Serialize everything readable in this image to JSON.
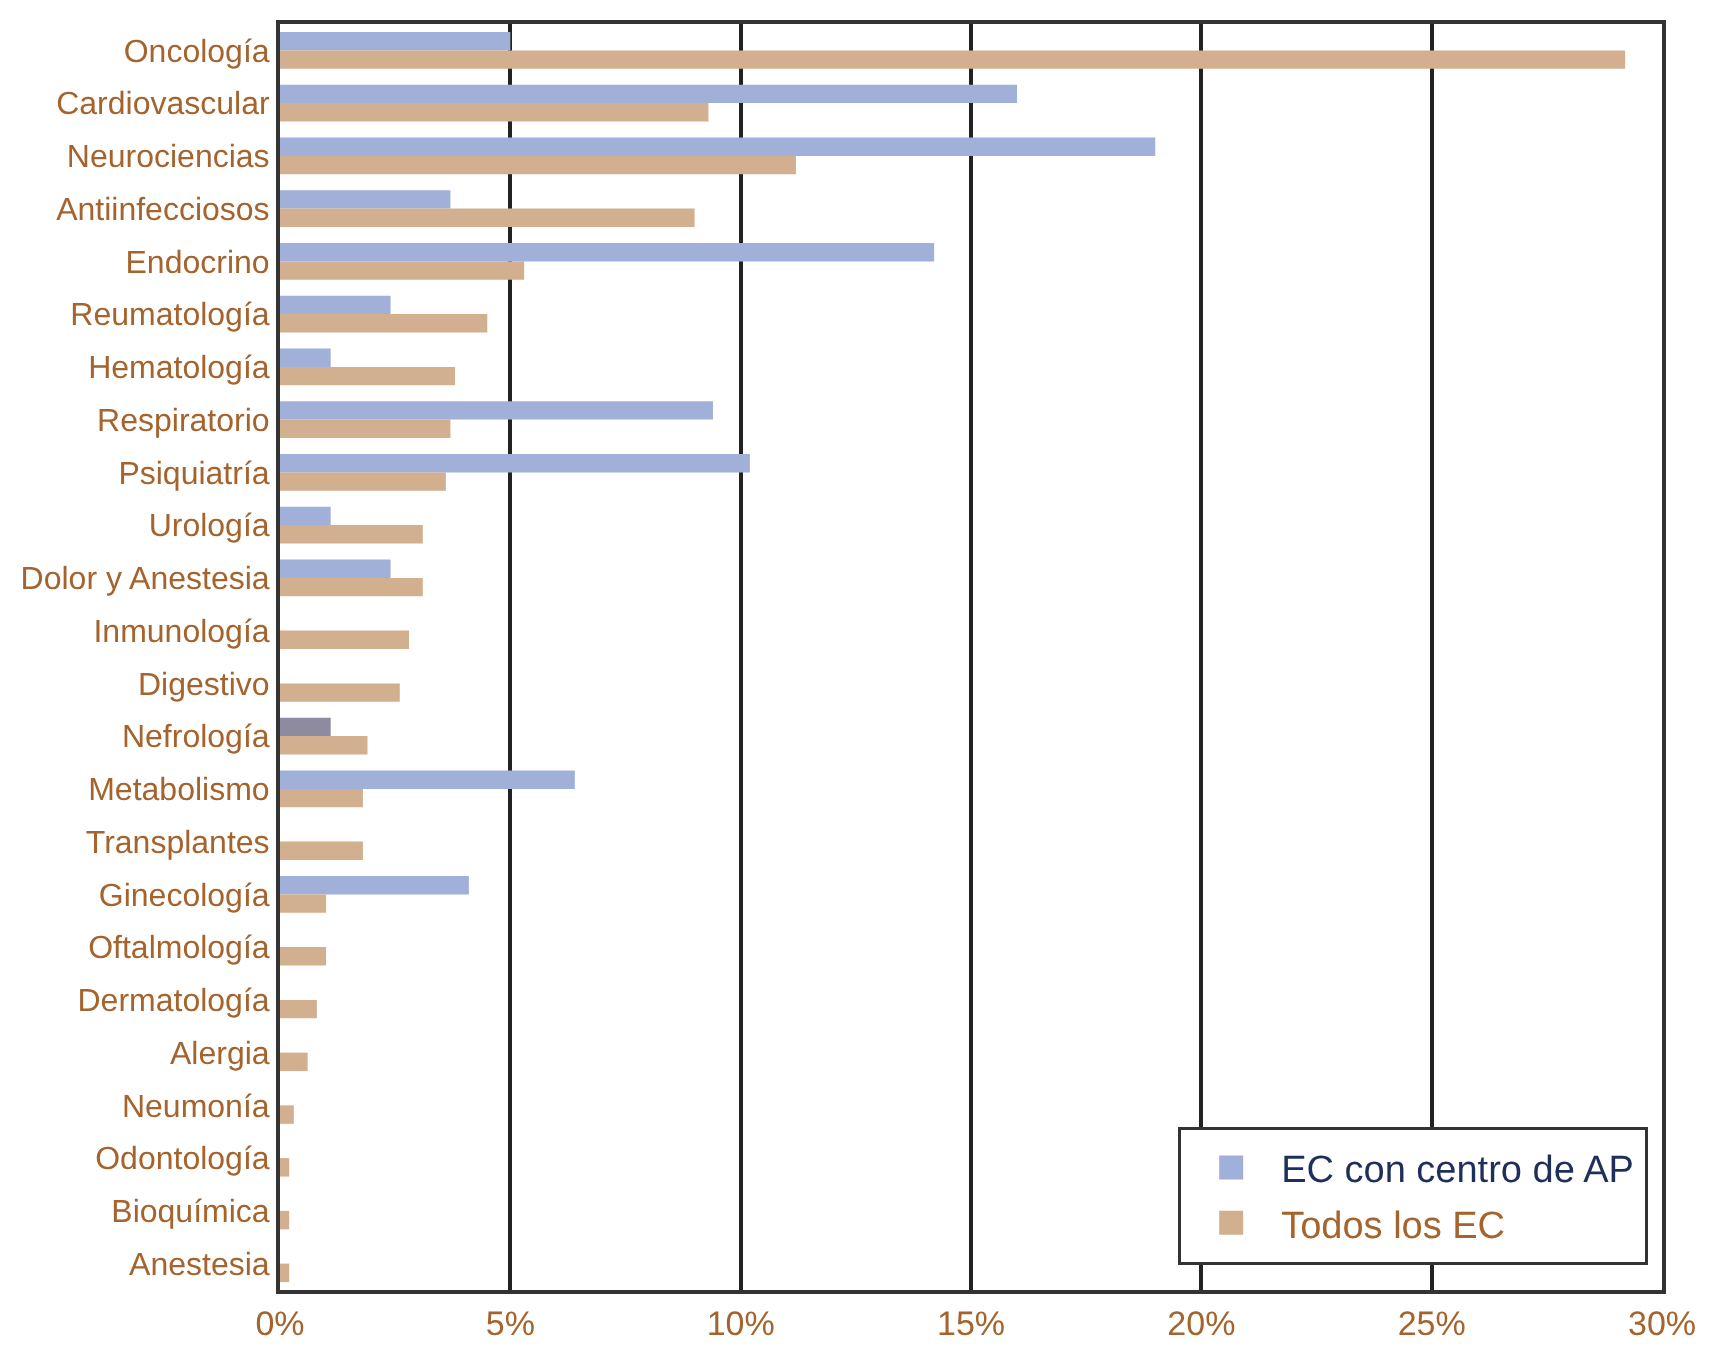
{
  "chart_data": {
    "type": "bar",
    "orientation": "horizontal",
    "categories": [
      "Oncología",
      "Cardiovascular",
      "Neurociencias",
      "Antiinfecciosos",
      "Endocrino",
      "Reumatología",
      "Hematología",
      "Respiratorio",
      "Psiquiatría",
      "Urología",
      "Dolor y Anestesia",
      "Inmunología",
      "Digestivo",
      "Nefrología",
      "Metabolismo",
      "Transplantes",
      "Ginecología",
      "Oftalmología",
      "Dermatología",
      "Alergia",
      "Neumonía",
      "Odontología",
      "Bioquímica",
      "Anestesia"
    ],
    "series": [
      {
        "name": "EC con centro de AP",
        "color": "#a0b0d8",
        "colors": [
          "#a0b0d8",
          "#a0b0d8",
          "#a0b0d8",
          "#a0b0d8",
          "#a0b0d8",
          "#a0b0d8",
          "#a0b0d8",
          "#a0b0d8",
          "#a0b0d8",
          "#a0b0d8",
          "#a0b0d8",
          "#a0b0d8",
          "#a0b0d8",
          "#8e8aa0",
          "#a0b0d8",
          "#a0b0d8",
          "#a0b0d8",
          "#a0b0d8",
          "#a0b0d8",
          "#a0b0d8",
          "#a0b0d8",
          "#a0b0d8",
          "#a0b0d8",
          "#a0b0d8"
        ],
        "values": [
          5.0,
          16.0,
          19.0,
          3.7,
          14.2,
          2.4,
          1.1,
          9.4,
          10.2,
          1.1,
          2.4,
          null,
          null,
          1.1,
          6.4,
          null,
          4.1,
          null,
          null,
          null,
          null,
          null,
          null,
          null
        ]
      },
      {
        "name": "Todos los EC",
        "color": "#d2af8f",
        "values": [
          29.2,
          9.3,
          11.2,
          9.0,
          5.3,
          4.5,
          3.8,
          3.7,
          3.6,
          3.1,
          3.1,
          2.8,
          2.6,
          1.9,
          1.8,
          1.8,
          1.0,
          1.0,
          0.8,
          0.6,
          0.3,
          0.2,
          0.2,
          0.2
        ]
      }
    ],
    "xlim": [
      0,
      30
    ],
    "xticks": [
      {
        "value": 0,
        "label": "0%"
      },
      {
        "value": 5,
        "label": "5%"
      },
      {
        "value": 10,
        "label": "10%"
      },
      {
        "value": 15,
        "label": "15%"
      },
      {
        "value": 20,
        "label": "20%"
      },
      {
        "value": 25,
        "label": "25%"
      },
      {
        "value": 30,
        "label": "30%"
      }
    ],
    "grid": "x",
    "legend": "bottom right"
  }
}
